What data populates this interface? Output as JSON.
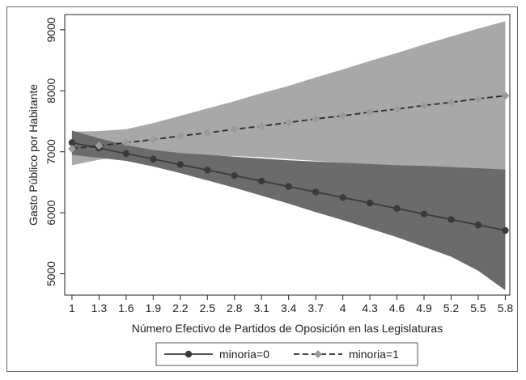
{
  "chart_data": {
    "type": "line",
    "title": "",
    "xlabel": "Número Efectivo de Partidos de Oposición en las Legislaturas",
    "ylabel": "Gasto Público por Habitante",
    "x": [
      1,
      1.3,
      1.6,
      1.9,
      2.2,
      2.5,
      2.8,
      3.1,
      3.4,
      3.7,
      4,
      4.3,
      4.6,
      4.9,
      5.2,
      5.5,
      5.8
    ],
    "x_tick_labels": [
      "1",
      "1.3",
      "1.6",
      "1.9",
      "2.2",
      "2.5",
      "2.8",
      "3.1",
      "3.4",
      "3.7",
      "4",
      "4.3",
      "4.6",
      "4.9",
      "5.2",
      "5.5",
      "5.8"
    ],
    "y_ticks": [
      5000,
      6000,
      7000,
      8000,
      9000
    ],
    "y_tick_labels": [
      "5000",
      "6000",
      "7000",
      "8000",
      "9000"
    ],
    "xlim": [
      0.92,
      5.85
    ],
    "ylim": [
      4650,
      9250
    ],
    "grid": false,
    "legend_position": "bottom",
    "series": [
      {
        "name": "minoria=0",
        "color": "#3a3a3a",
        "band_color": "#6b6b6b",
        "line_style": "solid",
        "marker": "circle",
        "values": [
          7150,
          7060,
          6970,
          6880,
          6790,
          6700,
          6610,
          6520,
          6430,
          6340,
          6250,
          6160,
          6070,
          5980,
          5890,
          5800,
          5710
        ],
        "ci_lower": [
          6950,
          6900,
          6850,
          6760,
          6650,
          6530,
          6410,
          6280,
          6150,
          6010,
          5880,
          5740,
          5600,
          5440,
          5280,
          5050,
          4730
        ],
        "ci_upper": [
          7350,
          7220,
          7110,
          7030,
          6980,
          6950,
          6920,
          6890,
          6860,
          6840,
          6820,
          6800,
          6780,
          6770,
          6750,
          6730,
          6710
        ]
      },
      {
        "name": "minoria=1",
        "color": "#2a2a2a",
        "marker_color": "#9a9a9a",
        "band_color": "#a8a8a8",
        "line_style": "dashed",
        "marker": "diamond",
        "values": [
          7050,
          7100,
          7150,
          7200,
          7260,
          7310,
          7370,
          7420,
          7480,
          7540,
          7590,
          7650,
          7700,
          7760,
          7810,
          7870,
          7920
        ],
        "ci_lower": [
          6780,
          6870,
          6930,
          6920,
          6930,
          6940,
          6930,
          6910,
          6880,
          6850,
          6820,
          6790,
          6770,
          6750,
          6730,
          6720,
          6700
        ],
        "ci_upper": [
          7330,
          7340,
          7370,
          7470,
          7590,
          7710,
          7830,
          7960,
          8080,
          8220,
          8350,
          8490,
          8620,
          8760,
          8890,
          9020,
          9140
        ]
      }
    ]
  }
}
